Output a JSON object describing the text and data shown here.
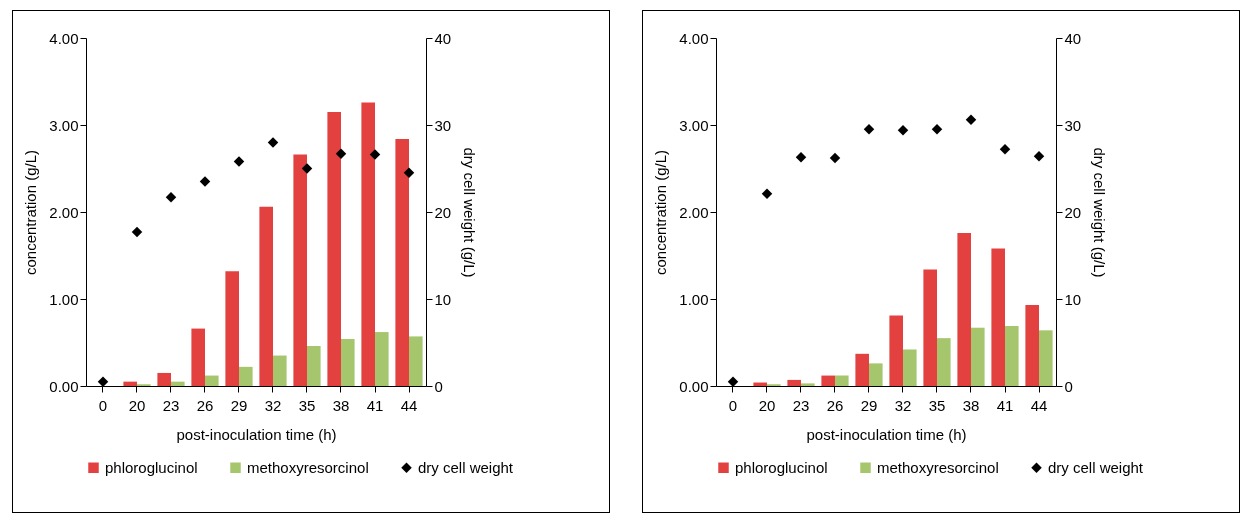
{
  "chart_data": [
    {
      "type": "bar",
      "xlabel": "post-inoculation time (h)",
      "ylabel": "concentration (g/L)",
      "y2label": "dry cell weight (g/L)",
      "categories": [
        "0",
        "20",
        "23",
        "26",
        "29",
        "32",
        "35",
        "38",
        "41",
        "44"
      ],
      "ylim": [
        0,
        4
      ],
      "yticks": [
        {
          "value": 0,
          "label": "0.00"
        },
        {
          "value": 1,
          "label": "1.00"
        },
        {
          "value": 2,
          "label": "2.00"
        },
        {
          "value": 3,
          "label": "3.00"
        },
        {
          "value": 4,
          "label": "4.00"
        }
      ],
      "y2lim": [
        0,
        40
      ],
      "y2ticks": [
        0,
        10,
        20,
        30,
        40
      ],
      "legend": "bottom",
      "marker": "diamond",
      "series": [
        {
          "name": "phloroglucinol",
          "color": "#e34040",
          "values": [
            0,
            0.05,
            0.15,
            0.66,
            1.32,
            2.06,
            2.66,
            3.15,
            3.26,
            2.84
          ]
        },
        {
          "name": "methoxyresorcinol",
          "color": "#a6c66e",
          "values": [
            0,
            0.02,
            0.05,
            0.12,
            0.22,
            0.35,
            0.46,
            0.54,
            0.62,
            0.57
          ]
        },
        {
          "name": "dry cell weight",
          "type": "scatter",
          "axis": "y2",
          "color": "#000000",
          "values": [
            0.5,
            17.7,
            21.7,
            23.5,
            25.8,
            28.0,
            25.0,
            26.7,
            26.6,
            24.5
          ]
        }
      ]
    },
    {
      "type": "bar",
      "xlabel": "post-inoculation time (h)",
      "ylabel": "concentration (g/L)",
      "y2label": "dry cell weight (g/L)",
      "categories": [
        "0",
        "20",
        "23",
        "26",
        "29",
        "32",
        "35",
        "38",
        "41",
        "44"
      ],
      "ylim": [
        0,
        4
      ],
      "yticks": [
        {
          "value": 0,
          "label": "0.00"
        },
        {
          "value": 1,
          "label": "1.00"
        },
        {
          "value": 2,
          "label": "2.00"
        },
        {
          "value": 3,
          "label": "3.00"
        },
        {
          "value": 4,
          "label": "4.00"
        }
      ],
      "y2lim": [
        0,
        40
      ],
      "y2ticks": [
        0,
        10,
        20,
        30,
        40
      ],
      "legend": "bottom",
      "marker": "diamond",
      "series": [
        {
          "name": "phloroglucinol",
          "color": "#e34040",
          "values": [
            0,
            0.04,
            0.07,
            0.12,
            0.37,
            0.81,
            1.34,
            1.76,
            1.58,
            0.93
          ]
        },
        {
          "name": "methoxyresorcinol",
          "color": "#a6c66e",
          "values": [
            0,
            0.02,
            0.03,
            0.12,
            0.26,
            0.42,
            0.55,
            0.67,
            0.69,
            0.64
          ]
        },
        {
          "name": "dry cell weight",
          "type": "scatter",
          "axis": "y2",
          "color": "#000000",
          "values": [
            0.5,
            22.1,
            26.3,
            26.2,
            29.5,
            29.4,
            29.5,
            30.6,
            27.2,
            26.4
          ]
        }
      ]
    }
  ]
}
